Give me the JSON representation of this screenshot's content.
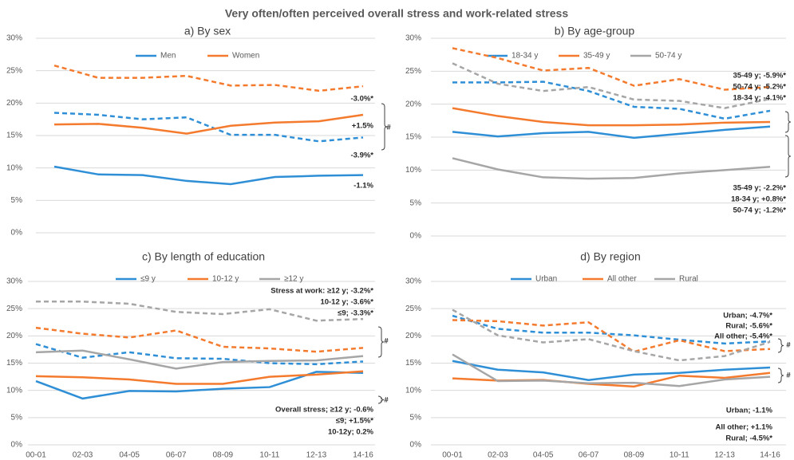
{
  "title": "Very often/often perceived overall stress and work-related stress",
  "chart_data": [
    {
      "type": "line",
      "title": "a) By sex",
      "categories": [
        null,
        null,
        null,
        null,
        null,
        null,
        null,
        null
      ],
      "ylim": [
        0,
        30
      ],
      "yticks": [
        {
          "value": 0,
          "label": "0%"
        },
        {
          "value": 5,
          "label": "5%"
        },
        {
          "value": 10,
          "label": "10%"
        },
        {
          "value": 15,
          "label": "15%"
        },
        {
          "value": 20,
          "label": "20%"
        },
        {
          "value": 25,
          "label": "25%"
        },
        {
          "value": 30,
          "label": "30%"
        }
      ],
      "grid": true,
      "series": [
        {
          "name": "Men",
          "color": "#2f8fd6",
          "values": [
            10.2,
            9.0,
            8.9,
            8.0,
            7.5,
            8.6,
            8.8,
            8.9
          ],
          "work_values": [
            18.5,
            18.2,
            17.5,
            17.8,
            15.1,
            15.1,
            14.1,
            14.7
          ]
        },
        {
          "name": "Women",
          "color": "#f47a2e",
          "values": [
            16.7,
            16.8,
            16.2,
            15.3,
            16.5,
            17.0,
            17.2,
            18.2
          ],
          "work_values": [
            25.8,
            23.9,
            23.9,
            24.2,
            22.7,
            22.8,
            21.9,
            22.6
          ]
        }
      ],
      "annotations": [
        "-3.0%*",
        "+1.5%",
        "-3.9%*",
        "-1.1%"
      ],
      "bracket_label": "#"
    },
    {
      "type": "line",
      "title": "b) By age-group",
      "categories": [
        null,
        null,
        null,
        null,
        null,
        null,
        null,
        null
      ],
      "ylim": [
        0,
        30
      ],
      "yticks": [
        {
          "value": 0,
          "label": "0%"
        },
        {
          "value": 5,
          "label": "5%"
        },
        {
          "value": 10,
          "label": "10%"
        },
        {
          "value": 15,
          "label": "15%"
        },
        {
          "value": 20,
          "label": "20%"
        },
        {
          "value": 25,
          "label": "25%"
        },
        {
          "value": 30,
          "label": "30%"
        }
      ],
      "grid": true,
      "series": [
        {
          "name": "18-34 y",
          "color": "#2f8fd6",
          "values": [
            15.8,
            15.1,
            15.6,
            15.8,
            14.9,
            15.5,
            16.1,
            16.6
          ],
          "work_values": [
            23.3,
            23.3,
            23.4,
            22.0,
            19.6,
            19.3,
            17.8,
            19.0
          ]
        },
        {
          "name": "35-49 y",
          "color": "#f47a2e",
          "values": [
            19.4,
            18.2,
            17.3,
            16.8,
            16.8,
            16.9,
            17.2,
            17.3
          ],
          "work_values": [
            28.5,
            27.0,
            25.1,
            25.5,
            22.8,
            23.8,
            22.2,
            22.6
          ]
        },
        {
          "name": "50-74 y",
          "color": "#a6a6a6",
          "values": [
            11.8,
            10.1,
            8.9,
            8.7,
            8.8,
            9.5,
            10.0,
            10.5
          ],
          "work_values": [
            26.2,
            23.1,
            22.0,
            22.6,
            20.7,
            20.5,
            19.4,
            20.8
          ]
        }
      ],
      "annotations": [
        "35-49 y; -5.9%*",
        "50-74 y; -5.2%*",
        "18-34 y; -4.1%*",
        "35-49 y; -2.2%*",
        "18-34 y; +0.8%*",
        "50-74 y; -1.2%*"
      ]
    },
    {
      "type": "line",
      "title": "c) By length of education",
      "categories": [
        "00-01",
        "02-03",
        "04-05",
        "06-07",
        "08-09",
        "10-11",
        "12-13",
        "14-16"
      ],
      "ylim": [
        0,
        30
      ],
      "yticks": [
        {
          "value": 0,
          "label": "0%"
        },
        {
          "value": 5,
          "label": "5%"
        },
        {
          "value": 10,
          "label": "10%"
        },
        {
          "value": 15,
          "label": "15%"
        },
        {
          "value": 20,
          "label": "20%"
        },
        {
          "value": 25,
          "label": "25%"
        },
        {
          "value": 30,
          "label": "30%"
        }
      ],
      "grid": true,
      "series": [
        {
          "name": "≤9 y",
          "color": "#2f8fd6",
          "values": [
            11.7,
            8.5,
            9.9,
            9.8,
            10.3,
            10.6,
            13.4,
            13.2
          ],
          "work_values": [
            18.5,
            16.0,
            17.0,
            15.9,
            15.8,
            15.0,
            14.8,
            15.3
          ]
        },
        {
          "name": "10-12 y",
          "color": "#f47a2e",
          "values": [
            12.6,
            12.4,
            12.0,
            11.2,
            11.2,
            12.5,
            12.9,
            13.5
          ],
          "work_values": [
            21.5,
            20.4,
            19.7,
            21.0,
            18.0,
            17.7,
            17.1,
            17.8
          ]
        },
        {
          "name": "≥12 y",
          "color": "#a6a6a6",
          "values": [
            17.0,
            17.3,
            15.7,
            14.0,
            15.2,
            15.4,
            15.5,
            16.3
          ],
          "work_values": [
            26.3,
            26.3,
            25.9,
            24.4,
            24.0,
            24.9,
            22.8,
            23.1
          ]
        }
      ],
      "annotations": [
        "Stress at work: ≥12 y; -3.2%*",
        "10-12 y; -3.6%*",
        "≤9; -3.3%*",
        "Overall stress; ≥12 y; -0.6%",
        "≤9; +1.5%*",
        "10-12y; 0.2%"
      ],
      "bracket_label": "#"
    },
    {
      "type": "line",
      "title": "d) By region",
      "categories": [
        "00-01",
        "02-03",
        "04-05",
        "06-07",
        "08-09",
        "10-11",
        "12-13",
        "14-16"
      ],
      "ylim": [
        0,
        30
      ],
      "yticks": [
        {
          "value": 0,
          "label": "0%"
        },
        {
          "value": 5,
          "label": "5%"
        },
        {
          "value": 10,
          "label": "10%"
        },
        {
          "value": 15,
          "label": "15%"
        },
        {
          "value": 20,
          "label": "20%"
        },
        {
          "value": 25,
          "label": "25%"
        },
        {
          "value": 30,
          "label": "30%"
        }
      ],
      "grid": true,
      "series": [
        {
          "name": "Urban",
          "color": "#2f8fd6",
          "values": [
            15.4,
            13.8,
            13.3,
            11.9,
            12.9,
            13.2,
            13.8,
            14.2
          ],
          "work_values": [
            23.7,
            21.3,
            20.6,
            20.6,
            20.1,
            19.3,
            18.6,
            19.0
          ]
        },
        {
          "name": "All other",
          "color": "#f47a2e",
          "values": [
            12.2,
            11.8,
            11.9,
            11.2,
            10.7,
            12.7,
            12.3,
            13.2
          ],
          "work_values": [
            22.9,
            22.7,
            21.9,
            22.5,
            17.1,
            19.2,
            17.2,
            17.6
          ]
        },
        {
          "name": "Rural",
          "color": "#a6a6a6",
          "values": [
            16.6,
            11.7,
            11.8,
            11.3,
            11.4,
            10.8,
            12.0,
            12.5
          ],
          "work_values": [
            24.8,
            20.1,
            18.8,
            19.4,
            17.2,
            15.5,
            16.3,
            18.9
          ]
        }
      ],
      "annotations": [
        "Urban; -4.7%*",
        "Rural; -5.6%*",
        "All other; -5.4%*",
        "Urban; -1.1%",
        "All other; +1.1%",
        "Rural; -4.5%*"
      ],
      "bracket_label": "#"
    }
  ]
}
